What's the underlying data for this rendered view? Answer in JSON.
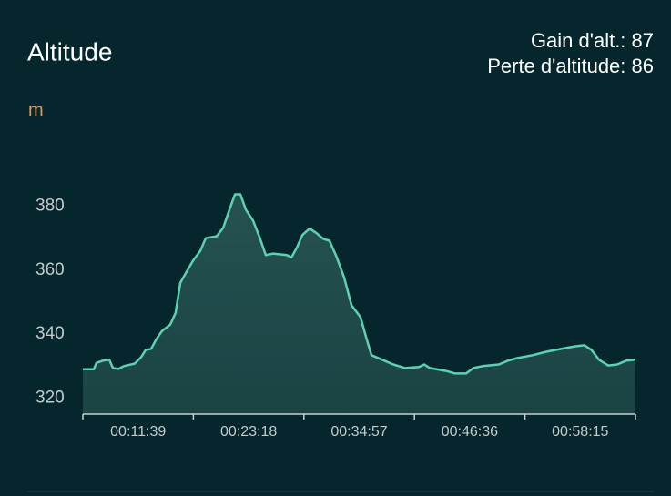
{
  "chart_data": {
    "type": "line",
    "title": "Altitude",
    "annotations": [
      "Gain d'alt.: 87",
      "Perte d'altitude: 86"
    ],
    "y_label": "m",
    "x": [
      0,
      69,
      86,
      127,
      167,
      190,
      225,
      259,
      328,
      369,
      397,
      432,
      466,
      501,
      553,
      587,
      616,
      656,
      697,
      743,
      777,
      846,
      887,
      927,
      962,
      996,
      1031,
      1077,
      1117,
      1157,
      1203,
      1290,
      1319,
      1353,
      1388,
      1434,
      1480,
      1520,
      1560,
      1606,
      1653,
      1699,
      1756,
      1791,
      1825,
      1894,
      1963,
      2038,
      2125,
      2159,
      2194,
      2297,
      2355,
      2424,
      2470,
      2528,
      2631,
      2689,
      2747,
      2844,
      2931,
      3046,
      3115,
      3172,
      3218,
      3264,
      3322,
      3379,
      3437,
      3495
    ],
    "series": [
      {
        "name": "Altitude",
        "color": "#5fd1b3",
        "values": [
          329,
          329,
          331,
          331.7,
          332,
          329.4,
          329.1,
          330,
          330.8,
          332.8,
          335,
          335.4,
          338.5,
          341,
          343,
          346.7,
          356,
          359.5,
          363,
          366,
          370,
          370.6,
          373.2,
          378.9,
          383.7,
          383.7,
          378.9,
          375.5,
          370.4,
          364.7,
          365.2,
          364.7,
          364,
          367,
          371,
          373,
          371.5,
          369.8,
          369.2,
          364,
          357.6,
          349,
          345.3,
          339,
          333.4,
          332,
          330.5,
          329.4,
          329.7,
          330.5,
          329.4,
          328.5,
          327.7,
          327.7,
          329.4,
          330,
          330.5,
          331.7,
          332.5,
          333.4,
          334.5,
          335.6,
          336.2,
          336.5,
          335,
          332,
          330.2,
          330.5,
          331.7,
          332
        ]
      }
    ],
    "xlim": [
      0,
      3495
    ],
    "xticks": [
      {
        "value": 699,
        "label": "00:11:39"
      },
      {
        "value": 1398,
        "label": "00:23:18"
      },
      {
        "value": 2097,
        "label": "00:34:57"
      },
      {
        "value": 2796,
        "label": "00:46:36"
      },
      {
        "value": 3495,
        "label": "00:58:15"
      }
    ],
    "ylim": [
      315,
      390
    ],
    "yticks": [
      320,
      340,
      360,
      380
    ],
    "grid": false
  }
}
